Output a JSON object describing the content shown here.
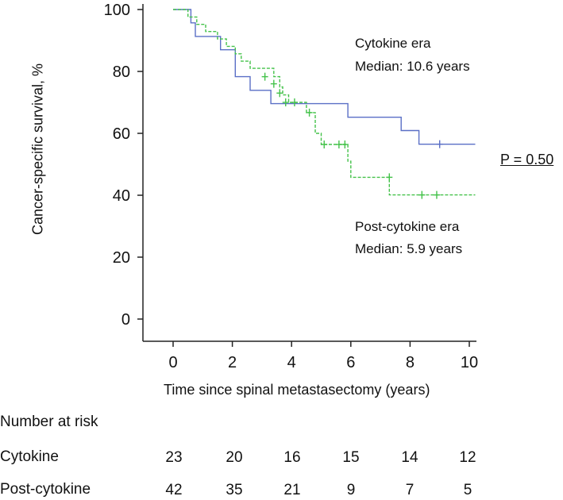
{
  "chart_data": {
    "type": "line",
    "title": "",
    "ylabel": "Cancer-specific survival, %",
    "xlabel": "Time since spinal metastasectomy (years)",
    "xlim": [
      -1,
      10.2
    ],
    "ylim": [
      -7,
      100
    ],
    "x_ticks": [
      0,
      2,
      4,
      6,
      8,
      10
    ],
    "y_ticks": [
      0,
      20,
      40,
      60,
      80,
      100
    ],
    "grid": false,
    "series": [
      {
        "name": "Cytokine era",
        "color": "#5a6fc6",
        "style": "solid",
        "median_label": "Median:  10.6 years",
        "steps": [
          [
            0,
            100
          ],
          [
            0.6,
            100
          ],
          [
            0.6,
            95.7
          ],
          [
            0.75,
            95.7
          ],
          [
            0.75,
            91.3
          ],
          [
            1.6,
            91.3
          ],
          [
            1.6,
            87
          ],
          [
            2.1,
            87
          ],
          [
            2.1,
            78.3
          ],
          [
            2.6,
            78.3
          ],
          [
            2.6,
            73.9
          ],
          [
            3.3,
            73.9
          ],
          [
            3.3,
            69.6
          ],
          [
            5.9,
            69.6
          ],
          [
            5.9,
            65.2
          ],
          [
            7.7,
            65.2
          ],
          [
            7.7,
            60.9
          ],
          [
            8.3,
            60.9
          ],
          [
            8.3,
            56.5
          ],
          [
            10.2,
            56.5
          ]
        ],
        "censored": [
          [
            9.0,
            56.5
          ]
        ]
      },
      {
        "name": "Post-cytokine era",
        "color": "#44c24a",
        "style": "dashed",
        "median_label": "Median:  5.9 years",
        "steps": [
          [
            0,
            100
          ],
          [
            0.5,
            100
          ],
          [
            0.5,
            97.6
          ],
          [
            0.8,
            97.6
          ],
          [
            0.8,
            95.2
          ],
          [
            1.1,
            95.2
          ],
          [
            1.1,
            92.9
          ],
          [
            1.5,
            92.9
          ],
          [
            1.5,
            90.5
          ],
          [
            1.8,
            90.5
          ],
          [
            1.8,
            88.1
          ],
          [
            2.1,
            88.1
          ],
          [
            2.1,
            85.7
          ],
          [
            2.3,
            85.7
          ],
          [
            2.3,
            83.3
          ],
          [
            2.6,
            83.3
          ],
          [
            2.6,
            81
          ],
          [
            3.4,
            81
          ],
          [
            3.4,
            78.3
          ],
          [
            3.6,
            78.3
          ],
          [
            3.6,
            75
          ],
          [
            3.7,
            75
          ],
          [
            3.7,
            72.4
          ],
          [
            3.9,
            72.4
          ],
          [
            3.9,
            70
          ],
          [
            4.5,
            70
          ],
          [
            4.5,
            66.7
          ],
          [
            4.8,
            66.7
          ],
          [
            4.8,
            60
          ],
          [
            5.0,
            60
          ],
          [
            5.0,
            56.4
          ],
          [
            5.9,
            56.4
          ],
          [
            5.9,
            51
          ],
          [
            6.0,
            51
          ],
          [
            6.0,
            45.8
          ],
          [
            7.3,
            45.8
          ],
          [
            7.3,
            40.1
          ],
          [
            10.2,
            40.1
          ]
        ],
        "censored": [
          [
            3.1,
            78.3
          ],
          [
            3.4,
            76
          ],
          [
            3.6,
            73
          ],
          [
            3.8,
            70
          ],
          [
            4.1,
            70
          ],
          [
            4.6,
            66.7
          ],
          [
            5.1,
            56.4
          ],
          [
            5.6,
            56.4
          ],
          [
            5.8,
            56.4
          ],
          [
            7.3,
            45.8
          ],
          [
            8.4,
            40.1
          ],
          [
            8.9,
            40.1
          ]
        ]
      }
    ],
    "annotations": {
      "cytokine_title": "Cytokine era",
      "cytokine_median": "Median:  10.6 years",
      "post_title": "Post-cytokine era",
      "post_median": "Median:  5.9 years",
      "p_value": "P = 0.50"
    }
  },
  "risk_table": {
    "heading": "Number at risk",
    "rows": [
      {
        "label": "Cytokine",
        "values": [
          23,
          20,
          16,
          15,
          14,
          12
        ]
      },
      {
        "label": "Post-cytokine",
        "values": [
          42,
          35,
          21,
          9,
          7,
          5
        ]
      }
    ]
  }
}
